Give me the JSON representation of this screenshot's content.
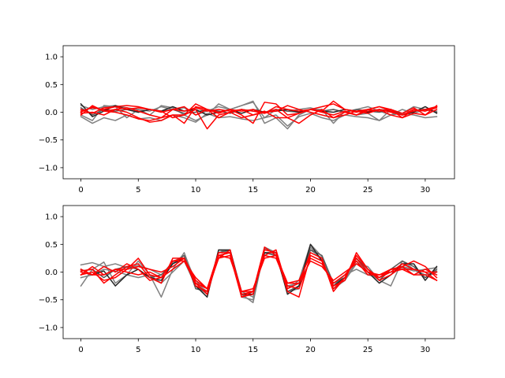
{
  "chart_data": [
    {
      "type": "line",
      "xlim": [
        -1.55,
        32.55
      ],
      "ylim": [
        -1.2,
        1.2
      ],
      "x_ticks": [
        0,
        5,
        10,
        15,
        20,
        25,
        30
      ],
      "y_ticks": [
        -1.0,
        -0.5,
        0.0,
        0.5,
        1.0
      ],
      "x_tick_labels": [
        "0",
        "5",
        "10",
        "15",
        "20",
        "25",
        "30"
      ],
      "y_tick_labels": [
        "−1.0",
        "−0.5",
        "0.0",
        "0.5",
        "1.0"
      ],
      "grid": false,
      "series": [
        {
          "color": "#808080",
          "values": [
            -0.08,
            -0.2,
            -0.1,
            -0.15,
            -0.05,
            -0.12,
            -0.1,
            -0.15,
            -0.05,
            -0.1,
            -0.18,
            -0.02,
            -0.1,
            -0.08,
            -0.12,
            -0.15,
            -0.1,
            -0.05,
            -0.25,
            -0.08,
            -0.02,
            -0.1,
            -0.15,
            -0.05,
            -0.08,
            -0.1,
            -0.15,
            -0.05,
            -0.02,
            -0.05,
            -0.1,
            -0.08
          ]
        },
        {
          "color": "#808080",
          "values": [
            0.12,
            0.05,
            0.1,
            0.12,
            0.08,
            0.05,
            0.02,
            0.1,
            0.05,
            0.08,
            -0.05,
            0.02,
            0.1,
            0.05,
            0.12,
            0.18,
            -0.1,
            0.05,
            0.02,
            0.05,
            0.08,
            0.02,
            0.05,
            0.0,
            0.05,
            0.1,
            0.02,
            -0.05,
            0.05,
            -0.02,
            0.05,
            0.1
          ]
        },
        {
          "color": "#808080",
          "values": [
            -0.05,
            -0.15,
            0.12,
            0.1,
            -0.1,
            0.05,
            -0.05,
            0.12,
            0.08,
            -0.05,
            -0.15,
            -0.05,
            0.15,
            0.05,
            0.12,
            0.2,
            -0.2,
            -0.1,
            -0.3,
            -0.05,
            0.05,
            0.05,
            -0.2,
            0.02,
            -0.05,
            -0.02,
            -0.15,
            0.05,
            -0.02,
            0.1,
            0.05,
            0.02
          ]
        },
        {
          "color": "#595959",
          "values": [
            0.08,
            -0.05,
            0.05,
            0.02,
            0.05,
            0.0,
            0.05,
            0.02,
            0.05,
            -0.02,
            0.0,
            0.05,
            0.02,
            -0.02,
            0.05,
            0.02,
            0.0,
            0.05,
            0.02,
            0.0,
            0.05,
            0.02,
            0.05,
            0.0,
            0.05,
            0.02,
            0.0,
            0.05,
            -0.05,
            0.02,
            0.05,
            0.0
          ]
        },
        {
          "color": "#262626",
          "values": [
            0.15,
            -0.08,
            0.02,
            0.12,
            0.05,
            0.0,
            0.05,
            0.02,
            0.1,
            0.02,
            0.05,
            -0.05,
            0.0,
            0.05,
            -0.02,
            0.05,
            0.0,
            0.02,
            0.05,
            0.0,
            0.05,
            0.02,
            0.0,
            0.05,
            0.02,
            0.0,
            0.05,
            0.02,
            -0.05,
            0.0,
            0.1,
            -0.02
          ]
        },
        {
          "color": "#ff0000",
          "values": [
            0.02,
            0.08,
            0.05,
            0.1,
            0.05,
            0.08,
            0.05,
            0.0,
            0.05,
            0.02,
            0.08,
            0.02,
            0.05,
            0.02,
            0.05,
            0.02,
            -0.02,
            0.1,
            0.05,
            0.02,
            0.05,
            0.1,
            0.15,
            0.05,
            0.02,
            0.05,
            0.1,
            0.02,
            -0.05,
            0.05,
            0.02,
            0.1
          ]
        },
        {
          "color": "#ff0000",
          "values": [
            -0.05,
            0.12,
            0.02,
            0.05,
            0.08,
            0.02,
            -0.05,
            -0.1,
            0.05,
            0.1,
            -0.05,
            0.05,
            0.0,
            0.05,
            0.02,
            0.05,
            -0.02,
            0.05,
            -0.1,
            -0.02,
            0.05,
            0.02,
            0.2,
            0.05,
            0.0,
            0.05,
            0.02,
            0.05,
            -0.02,
            0.08,
            -0.05,
            0.05
          ]
        },
        {
          "color": "#ff0000",
          "values": [
            0.05,
            -0.02,
            0.08,
            0.1,
            0.12,
            0.1,
            0.05,
            0.02,
            -0.1,
            -0.05,
            0.15,
            0.05,
            -0.02,
            0.05,
            -0.05,
            -0.2,
            0.18,
            0.15,
            -0.05,
            -0.02,
            0.05,
            0.0,
            -0.05,
            0.02,
            -0.05,
            0.05,
            0.1,
            0.05,
            -0.1,
            0.05,
            0.02,
            0.08
          ]
        },
        {
          "color": "#ff0000",
          "values": [
            -0.02,
            0.0,
            -0.05,
            0.05,
            0.0,
            -0.1,
            -0.18,
            -0.15,
            -0.05,
            -0.05,
            0.05,
            -0.3,
            -0.05,
            0.0,
            -0.1,
            -0.05,
            0.02,
            -0.1,
            -0.1,
            -0.2,
            -0.05,
            0.05,
            -0.1,
            0.0,
            -0.05,
            0.02,
            0.05,
            -0.05,
            -0.1,
            -0.02,
            -0.05,
            0.12
          ]
        },
        {
          "color": "#ff0000",
          "values": [
            0.0,
            0.1,
            0.02,
            0.0,
            -0.05,
            -0.12,
            -0.15,
            -0.1,
            -0.05,
            -0.2,
            0.1,
            0.05,
            -0.1,
            0.0,
            0.05,
            -0.05,
            0.0,
            0.02,
            0.12,
            0.05,
            0.0,
            -0.05,
            -0.1,
            -0.05,
            0.02,
            -0.02,
            0.05,
            0.0,
            -0.05,
            0.02,
            0.05,
            0.1
          ]
        }
      ]
    },
    {
      "type": "line",
      "xlim": [
        -1.55,
        32.55
      ],
      "ylim": [
        -1.2,
        1.2
      ],
      "x_ticks": [
        0,
        5,
        10,
        15,
        20,
        25,
        30
      ],
      "y_ticks": [
        -1.0,
        -0.5,
        0.0,
        0.5,
        1.0
      ],
      "x_tick_labels": [
        "0",
        "5",
        "10",
        "15",
        "20",
        "25",
        "30"
      ],
      "y_tick_labels": [
        "−1.0",
        "−0.5",
        "0.0",
        "0.5",
        "1.0"
      ],
      "grid": false,
      "series": [
        {
          "color": "#808080",
          "values": [
            0.13,
            0.17,
            0.1,
            0.15,
            0.08,
            0.12,
            0.05,
            -0.05,
            0.18,
            0.3,
            -0.15,
            -0.4,
            0.4,
            0.35,
            -0.4,
            -0.55,
            0.42,
            0.35,
            -0.3,
            -0.15,
            0.5,
            0.28,
            -0.25,
            -0.05,
            0.05,
            -0.05,
            -0.1,
            0.05,
            0.08,
            0.02,
            0.05,
            0.08
          ]
        },
        {
          "color": "#808080",
          "values": [
            -0.25,
            0.05,
            0.18,
            -0.2,
            -0.05,
            0.2,
            -0.05,
            -0.45,
            0.05,
            0.35,
            -0.2,
            -0.35,
            0.35,
            0.4,
            -0.35,
            -0.45,
            0.35,
            0.3,
            -0.25,
            -0.2,
            0.4,
            0.25,
            -0.3,
            -0.15,
            0.15,
            0.1,
            -0.15,
            -0.25,
            0.2,
            0.05,
            -0.1,
            0.0
          ]
        },
        {
          "color": "#808080",
          "values": [
            -0.1,
            -0.05,
            0.05,
            0.02,
            -0.05,
            -0.1,
            -0.05,
            -0.2,
            0.0,
            0.2,
            -0.25,
            -0.4,
            0.3,
            0.35,
            -0.45,
            -0.5,
            0.45,
            0.35,
            -0.35,
            -0.3,
            0.45,
            0.2,
            -0.3,
            -0.15,
            0.2,
            0.0,
            -0.15,
            0.05,
            0.1,
            0.05,
            -0.05,
            0.02
          ]
        },
        {
          "color": "#595959",
          "values": [
            0.02,
            0.05,
            -0.1,
            0.05,
            0.1,
            0.05,
            -0.1,
            -0.05,
            0.15,
            0.3,
            -0.3,
            -0.35,
            0.35,
            0.4,
            -0.4,
            -0.4,
            0.35,
            0.3,
            -0.35,
            -0.25,
            0.4,
            0.3,
            -0.2,
            -0.1,
            0.25,
            0.05,
            -0.15,
            0.05,
            0.2,
            0.1,
            -0.1,
            0.05
          ]
        },
        {
          "color": "#262626",
          "values": [
            0.05,
            -0.05,
            0.02,
            -0.25,
            -0.05,
            0.05,
            -0.1,
            -0.15,
            0.15,
            0.25,
            -0.25,
            -0.45,
            0.4,
            0.4,
            -0.4,
            -0.4,
            0.35,
            0.35,
            -0.4,
            -0.25,
            0.5,
            0.2,
            -0.25,
            -0.1,
            0.25,
            0.0,
            -0.2,
            -0.05,
            0.15,
            0.15,
            -0.15,
            0.1
          ]
        },
        {
          "color": "#ff0000",
          "values": [
            0.0,
            -0.05,
            0.1,
            0.0,
            0.15,
            0.05,
            -0.15,
            -0.1,
            0.2,
            0.25,
            -0.2,
            -0.4,
            0.3,
            0.35,
            -0.4,
            -0.35,
            0.3,
            0.4,
            -0.3,
            -0.2,
            0.35,
            0.25,
            -0.35,
            -0.1,
            0.3,
            0.05,
            -0.1,
            0.0,
            0.15,
            0.05,
            0.0,
            -0.15
          ]
        },
        {
          "color": "#ff0000",
          "values": [
            -0.05,
            0.0,
            -0.15,
            -0.1,
            0.05,
            0.25,
            -0.05,
            -0.1,
            0.2,
            0.2,
            -0.2,
            -0.3,
            0.25,
            0.4,
            -0.45,
            -0.4,
            0.4,
            0.35,
            -0.35,
            -0.45,
            0.3,
            0.2,
            -0.25,
            -0.15,
            0.35,
            0.05,
            -0.15,
            -0.05,
            0.1,
            -0.05,
            -0.05,
            -0.15
          ]
        },
        {
          "color": "#ff0000",
          "values": [
            0.02,
            0.05,
            -0.2,
            -0.05,
            0.1,
            0.15,
            -0.1,
            -0.2,
            0.25,
            0.25,
            -0.15,
            -0.3,
            0.35,
            0.35,
            -0.35,
            -0.35,
            0.45,
            0.3,
            -0.2,
            -0.15,
            0.3,
            0.2,
            -0.3,
            -0.1,
            0.25,
            0.0,
            -0.1,
            0.05,
            0.1,
            0.2,
            0.1,
            -0.1
          ]
        },
        {
          "color": "#ff0000",
          "values": [
            -0.05,
            0.1,
            -0.05,
            0.05,
            0.05,
            0.1,
            0.05,
            0.0,
            0.1,
            0.25,
            -0.25,
            -0.35,
            0.25,
            0.3,
            -0.45,
            -0.35,
            0.3,
            0.25,
            -0.25,
            -0.3,
            0.25,
            0.15,
            -0.2,
            -0.05,
            0.2,
            -0.05,
            -0.05,
            0.05,
            0.05,
            -0.05,
            0.05,
            -0.05
          ]
        },
        {
          "color": "#ff0000",
          "values": [
            0.05,
            -0.05,
            -0.05,
            0.05,
            0.0,
            -0.05,
            0.0,
            -0.1,
            0.05,
            0.2,
            -0.1,
            -0.3,
            0.3,
            0.25,
            -0.35,
            -0.3,
            0.25,
            0.3,
            -0.2,
            -0.2,
            0.2,
            0.1,
            -0.15,
            0.0,
            0.15,
            0.0,
            -0.05,
            0.0,
            0.05,
            0.05,
            0.0,
            0.0
          ]
        }
      ]
    }
  ]
}
